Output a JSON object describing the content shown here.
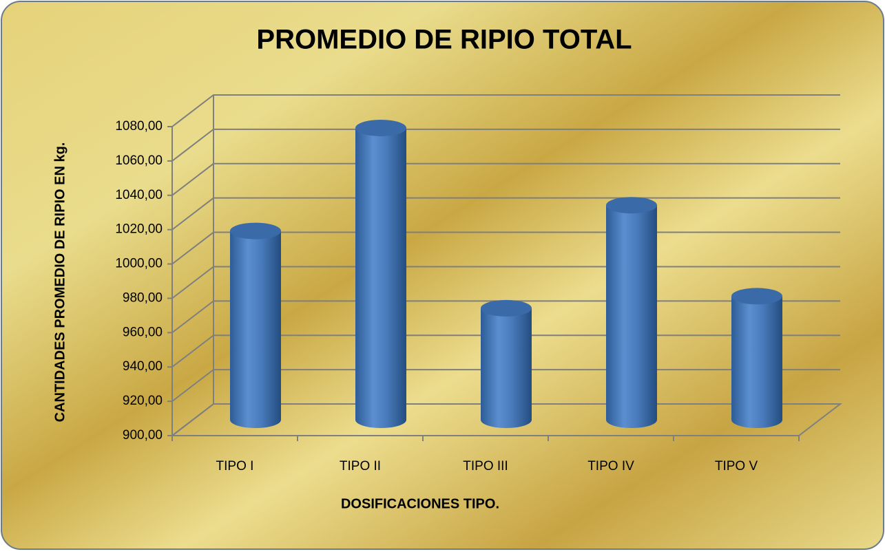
{
  "chart_data": {
    "type": "bar3d-cylinder",
    "title": "PROMEDIO DE RIPIO TOTAL",
    "x_label": "DOSIFICACIONES TIPO.",
    "y_label": "CANTIDADES PROMEDIO  DE RIPIO  EN kg.",
    "categories": [
      "TIPO I",
      "TIPO II",
      "TIPO III",
      "TIPO IV",
      "TIPO V"
    ],
    "values": [
      1010,
      1070,
      965,
      1025,
      972
    ],
    "color": "#4f81bd",
    "ylim": [
      900,
      1080
    ],
    "yticks": [
      {
        "value": 900,
        "label": "900,00"
      },
      {
        "value": 920,
        "label": "920,00"
      },
      {
        "value": 940,
        "label": "940,00"
      },
      {
        "value": 960,
        "label": "960,00"
      },
      {
        "value": 980,
        "label": "980,00"
      },
      {
        "value": 1000,
        "label": "1000,00"
      },
      {
        "value": 1020,
        "label": "1020,00"
      },
      {
        "value": 1040,
        "label": "1040,00"
      },
      {
        "value": 1060,
        "label": "1060,00"
      },
      {
        "value": 1080,
        "label": "1080,00"
      }
    ],
    "grid": true
  }
}
